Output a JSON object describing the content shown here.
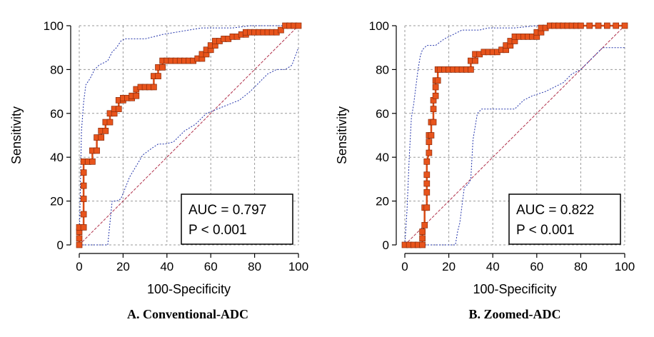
{
  "chart_data": [
    {
      "type": "line",
      "caption": "A. Conventional-ADC",
      "xlabel": "100-Specificity",
      "ylabel": "Sensitivity",
      "xlim": [
        0,
        100
      ],
      "ylim": [
        0,
        100
      ],
      "xticks": [
        "0",
        "20",
        "40",
        "60",
        "80",
        "100"
      ],
      "yticks": [
        "0",
        "20",
        "40",
        "60",
        "80",
        "100"
      ],
      "grid": true,
      "auc_label": "AUC = 0.797",
      "p_label": "P < 0.001",
      "colors": {
        "roc": "#e8541c",
        "roc_marker": "#e8541c",
        "ci": "#2233aa",
        "diagonal": "#b0304a",
        "grid": "#999999"
      },
      "series": [
        {
          "name": "ROC",
          "x": [
            0,
            0,
            0,
            0,
            2,
            2,
            2,
            2,
            2,
            2,
            4,
            4,
            6,
            6,
            8,
            8,
            10,
            10,
            12,
            12,
            14,
            14,
            16,
            16,
            18,
            18,
            20,
            20,
            22,
            24,
            24,
            26,
            26,
            28,
            30,
            32,
            34,
            34,
            36,
            36,
            38,
            38,
            40,
            42,
            44,
            46,
            48,
            50,
            52,
            54,
            56,
            56,
            58,
            58,
            60,
            60,
            62,
            62,
            64,
            66,
            68,
            70,
            72,
            74,
            76,
            76,
            78,
            80,
            82,
            84,
            86,
            88,
            90,
            92,
            94,
            96,
            98,
            100
          ],
          "y": [
            0,
            3,
            6,
            8,
            8,
            14,
            21,
            27,
            33,
            38,
            38,
            38,
            38,
            43,
            43,
            49,
            49,
            52,
            52,
            56,
            56,
            60,
            60,
            62,
            62,
            66,
            66,
            67,
            67,
            67,
            68,
            68,
            71,
            72,
            72,
            72,
            72,
            77,
            77,
            81,
            81,
            84,
            84,
            84,
            84,
            84,
            84,
            84,
            84,
            85,
            85,
            87,
            87,
            89,
            89,
            91,
            91,
            93,
            93,
            94,
            94,
            95,
            95,
            96,
            96,
            97,
            97,
            97,
            97,
            97,
            97,
            97,
            97,
            98,
            100,
            100,
            100,
            100
          ]
        },
        {
          "name": "CI upper",
          "x": [
            0,
            1,
            2,
            3,
            5,
            7,
            9,
            11,
            13,
            15,
            17,
            19,
            21,
            23,
            26,
            30,
            34,
            38,
            44,
            50,
            56,
            62,
            70,
            78,
            86,
            94,
            100
          ],
          "y": [
            0,
            52,
            65,
            73,
            76,
            80,
            82,
            83,
            84,
            88,
            90,
            93,
            94,
            94,
            94,
            94,
            95,
            96,
            97,
            98,
            99,
            99,
            99,
            100,
            100,
            100,
            100
          ]
        },
        {
          "name": "CI lower",
          "x": [
            0,
            5,
            10,
            13,
            15,
            17,
            19,
            21,
            23,
            26,
            29,
            33,
            36,
            39,
            43,
            48,
            53,
            58,
            63,
            68,
            73,
            78,
            82,
            86,
            90,
            94,
            97,
            100
          ],
          "y": [
            0,
            0,
            0,
            0,
            20,
            20,
            21,
            26,
            31,
            36,
            41,
            44,
            46,
            46,
            47,
            52,
            55,
            60,
            62,
            64,
            66,
            70,
            74,
            78,
            80,
            80,
            82,
            90
          ]
        }
      ]
    },
    {
      "type": "line",
      "caption": "B. Zoomed-ADC",
      "xlabel": "100-Specificity",
      "ylabel": "Sensitivity",
      "xlim": [
        0,
        100
      ],
      "ylim": [
        0,
        100
      ],
      "xticks": [
        "0",
        "20",
        "40",
        "60",
        "80",
        "100"
      ],
      "yticks": [
        "0",
        "20",
        "40",
        "60",
        "80",
        "100"
      ],
      "grid": true,
      "auc_label": "AUC = 0.822",
      "p_label": "P < 0.001",
      "colors": {
        "roc": "#e8541c",
        "roc_marker": "#e8541c",
        "ci": "#2233aa",
        "diagonal": "#b0304a",
        "grid": "#999999"
      },
      "series": [
        {
          "name": "ROC",
          "x": [
            0,
            2,
            4,
            6,
            8,
            8,
            8,
            9,
            9,
            10,
            10,
            10,
            10,
            10,
            11,
            11,
            11,
            12,
            12,
            13,
            13,
            13,
            14,
            14,
            14,
            15,
            15,
            16,
            18,
            20,
            22,
            24,
            26,
            28,
            30,
            30,
            32,
            32,
            34,
            36,
            38,
            40,
            42,
            44,
            46,
            46,
            48,
            48,
            50,
            50,
            52,
            54,
            56,
            58,
            60,
            60,
            62,
            62,
            64,
            66,
            68,
            70,
            72,
            74,
            76,
            78,
            80,
            84,
            88,
            92,
            96,
            100
          ],
          "y": [
            0,
            0,
            0,
            0,
            0,
            3,
            6,
            9,
            17,
            17,
            24,
            28,
            32,
            38,
            42,
            47,
            50,
            50,
            56,
            56,
            62,
            66,
            68,
            72,
            75,
            75,
            80,
            80,
            80,
            80,
            80,
            80,
            80,
            80,
            80,
            84,
            84,
            87,
            87,
            88,
            88,
            88,
            88,
            89,
            89,
            91,
            91,
            93,
            93,
            95,
            95,
            95,
            95,
            95,
            95,
            97,
            97,
            99,
            99,
            100,
            100,
            100,
            100,
            100,
            100,
            100,
            100,
            100,
            100,
            100,
            100,
            100
          ]
        },
        {
          "name": "CI upper",
          "x": [
            0,
            1,
            2,
            3,
            4,
            5,
            6,
            7,
            8,
            10,
            12,
            14,
            18,
            22,
            26,
            30,
            34,
            38,
            44,
            50,
            60,
            70,
            80,
            90,
            100
          ],
          "y": [
            0,
            16,
            40,
            58,
            64,
            72,
            80,
            86,
            89,
            91,
            91,
            91,
            94,
            96,
            98,
            98,
            98,
            99,
            99,
            99,
            100,
            100,
            100,
            100,
            100
          ]
        },
        {
          "name": "CI lower",
          "x": [
            0,
            10,
            15,
            20,
            23,
            24,
            25,
            27,
            29,
            30,
            31,
            33,
            35,
            39,
            45,
            48,
            50,
            54,
            58,
            64,
            68,
            72,
            76,
            80,
            84,
            90,
            95,
            100
          ],
          "y": [
            0,
            0,
            0,
            0,
            0,
            6,
            10,
            26,
            28,
            30,
            48,
            60,
            62,
            62,
            62,
            62,
            62,
            66,
            68,
            70,
            72,
            74,
            78,
            80,
            84,
            90,
            90,
            90
          ]
        }
      ]
    }
  ]
}
